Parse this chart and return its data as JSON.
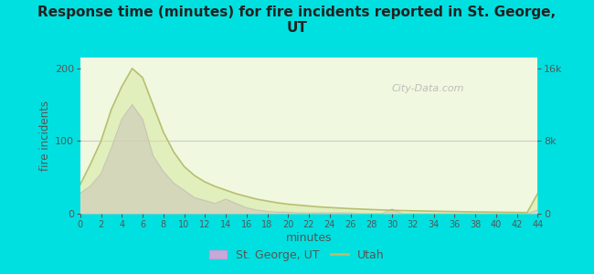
{
  "title": "Response time (minutes) for fire incidents reported in St. George,\nUT",
  "xlabel": "minutes",
  "ylabel_left": "fire incidents",
  "background_color": "#00e0e0",
  "plot_bg_top": "#e8f5d0",
  "plot_bg_bottom": "#f8fff0",
  "xticks": [
    0,
    2,
    4,
    6,
    8,
    10,
    12,
    14,
    16,
    18,
    20,
    22,
    24,
    26,
    28,
    30,
    32,
    34,
    36,
    38,
    40,
    42,
    44
  ],
  "yticks_left": [
    0,
    100,
    200
  ],
  "yticks_right": [
    0,
    8000,
    16000
  ],
  "ytick_labels_right": [
    "0",
    "8k",
    "16k"
  ],
  "ylim_left": [
    0,
    215
  ],
  "ylim_right": [
    0,
    17200
  ],
  "xlim": [
    0,
    44
  ],
  "city_x": [
    0,
    1,
    2,
    3,
    4,
    5,
    6,
    7,
    8,
    9,
    10,
    11,
    12,
    13,
    14,
    15,
    16,
    17,
    18,
    19,
    20,
    21,
    22,
    23,
    24,
    25,
    26,
    27,
    28,
    29,
    30,
    31,
    32,
    33,
    34,
    35,
    36,
    37,
    38,
    39,
    40,
    41,
    42,
    43,
    44
  ],
  "city_y": [
    28,
    38,
    55,
    90,
    130,
    150,
    130,
    80,
    58,
    42,
    32,
    22,
    18,
    14,
    20,
    14,
    8,
    5,
    3,
    2,
    2,
    1,
    1,
    1,
    1,
    1,
    1,
    0,
    0,
    0,
    6,
    0,
    0,
    0,
    0,
    0,
    0,
    0,
    0,
    0,
    0,
    0,
    0,
    0,
    5
  ],
  "state_x": [
    0,
    1,
    2,
    3,
    4,
    5,
    6,
    7,
    8,
    9,
    10,
    11,
    12,
    13,
    14,
    15,
    16,
    17,
    18,
    19,
    20,
    21,
    22,
    23,
    24,
    25,
    26,
    27,
    28,
    29,
    30,
    31,
    32,
    33,
    34,
    35,
    36,
    37,
    38,
    39,
    40,
    41,
    42,
    43,
    44
  ],
  "state_y": [
    3200,
    5500,
    8000,
    11500,
    14000,
    16000,
    15000,
    12000,
    9000,
    6800,
    5200,
    4200,
    3500,
    3000,
    2600,
    2200,
    1900,
    1600,
    1400,
    1200,
    1050,
    950,
    850,
    750,
    680,
    620,
    560,
    510,
    460,
    420,
    380,
    350,
    320,
    300,
    275,
    255,
    235,
    215,
    200,
    185,
    170,
    155,
    145,
    130,
    2200
  ],
  "city_color": "#b090c0",
  "city_edge_color": "#c0a0d0",
  "state_color": "#b8be70",
  "city_fill_alpha": 0.65,
  "state_fill_alpha": 0.55,
  "city_label": "St. George, UT",
  "state_label": "Utah",
  "watermark": "City-Data.com",
  "title_color": "#222222",
  "tick_color": "#555555",
  "axis_label_color": "#555555",
  "hline_color": "#cccccc",
  "hline_y_left": 100
}
